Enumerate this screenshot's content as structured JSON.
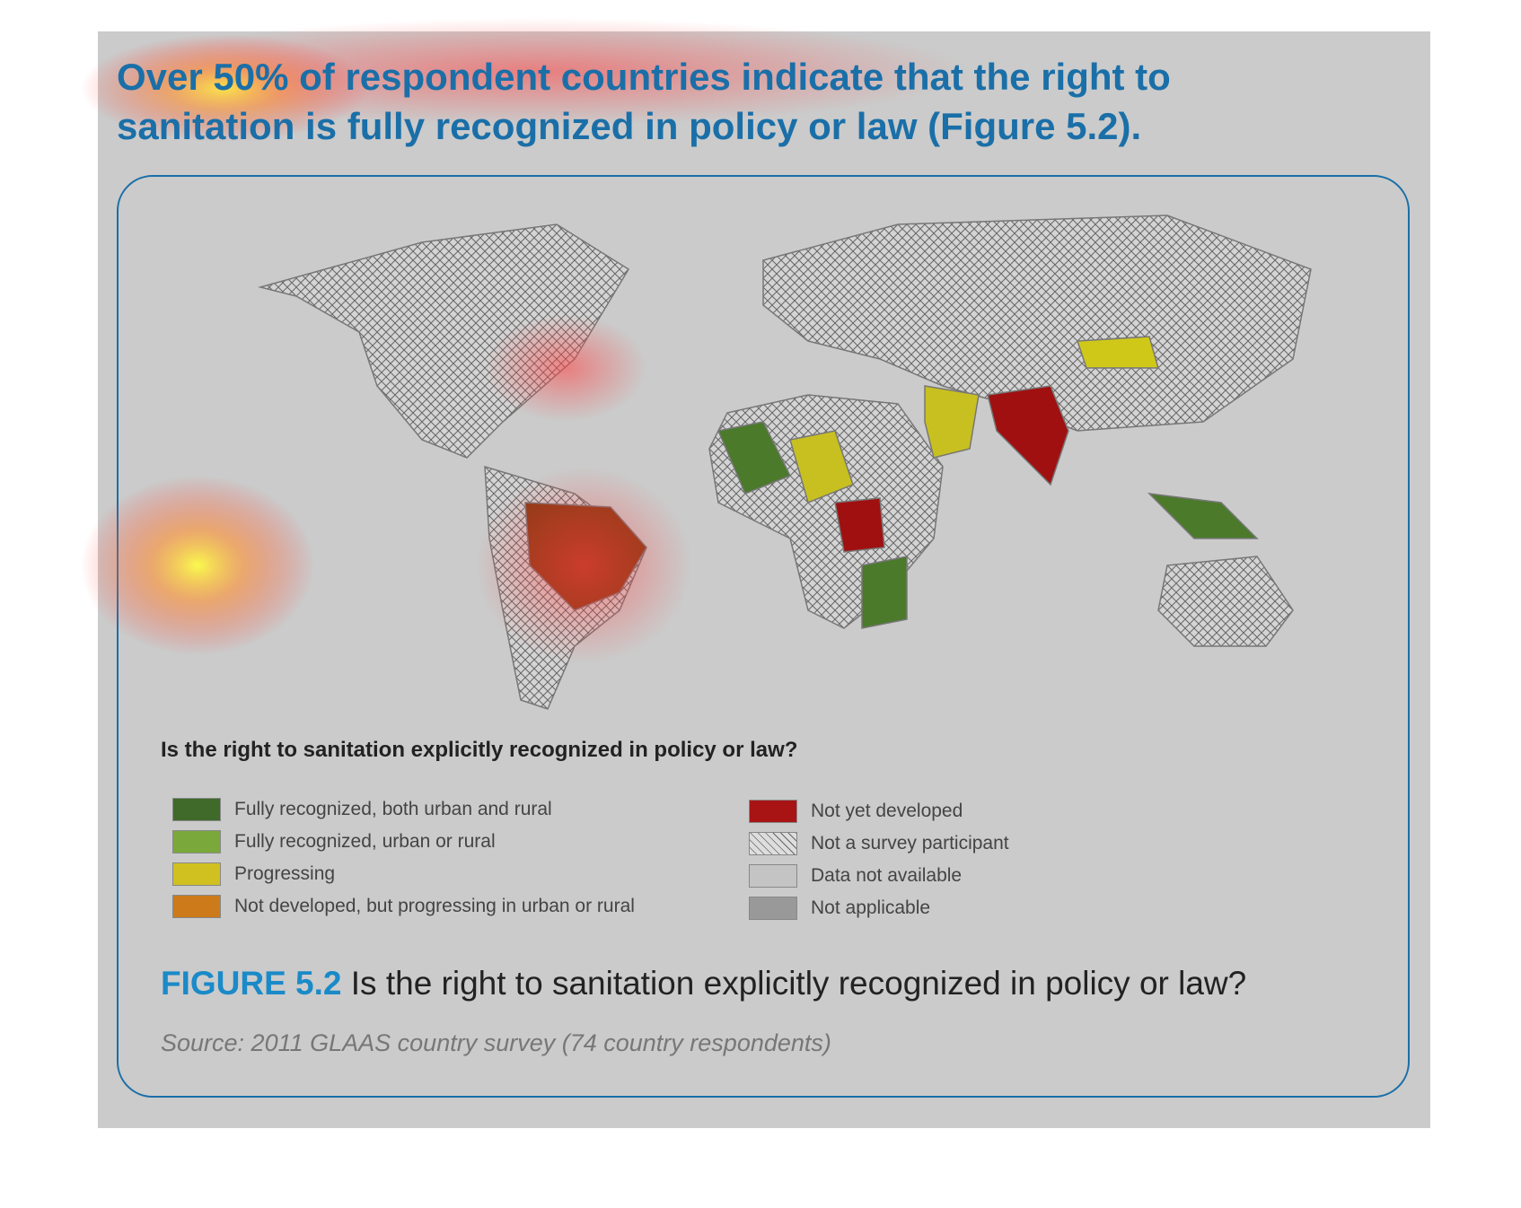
{
  "header": {
    "text": "Over 50% of respondent countries indicate that the right to sanitation is fully recognized in policy or law (Figure 5.2)."
  },
  "figure": {
    "legend_title": "Is the right to sanitation explicitly recognized in policy or law?",
    "legend": [
      "Fully recognized, both urban and rural",
      "Fully recognized, urban or rural",
      "Progressing",
      "Not developed, but progressing in urban or rural",
      "Not yet developed",
      "Not a survey participant",
      "Data not available",
      "Not applicable"
    ],
    "caption_label": "FIGURE 5.2",
    "caption_text": "Is the right to sanitation explicitly recognized in policy or law?",
    "source": "Source: 2011 GLAAS country survey (74 country respondents)"
  }
}
